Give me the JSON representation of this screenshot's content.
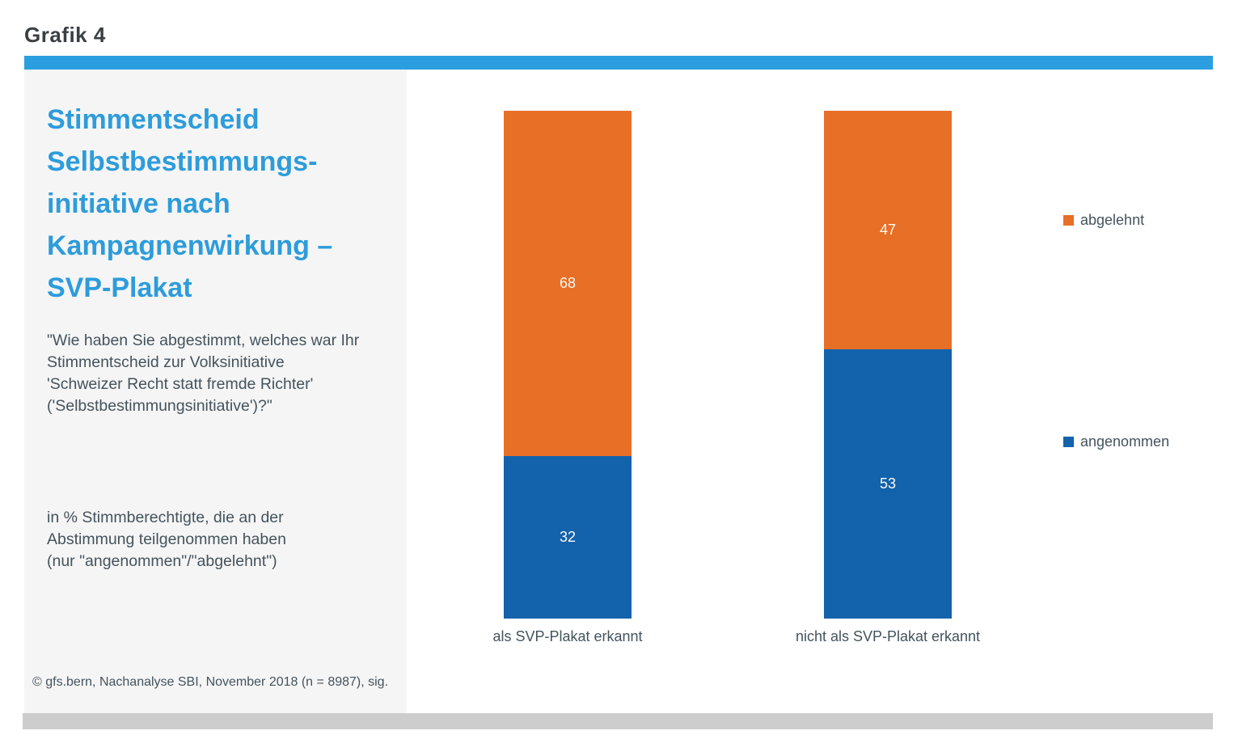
{
  "page": {
    "heading": "Grafik 4",
    "accent_color": "#2B9EDF",
    "panel_bg": "#F5F5F5",
    "bottom_bar_color": "#CDCDCD",
    "title_color": "#2D9CDB",
    "text_color": "#44535D"
  },
  "panel": {
    "title_lines": [
      "Stimmentscheid",
      "Selbstbestimmungs-",
      "initiative nach",
      "Kampagnenwirkung –",
      "SVP-Plakat"
    ],
    "question_lines": [
      "\"Wie haben Sie abgestimmt, welches war Ihr",
      "Stimmentscheid zur Volksinitiative",
      "'Schweizer Recht statt fremde Richter'",
      "('Selbstbestimmungsinitiative')?\""
    ],
    "note_lines": [
      "in % Stimmberechtigte, die an der",
      "Abstimmung teilgenommen haben",
      "(nur \"angenommen\"/\"abgelehnt\")"
    ],
    "source": "© gfs.bern, Nachanalyse SBI, November 2018 (n = 8987), sig."
  },
  "chart_data": {
    "type": "bar",
    "stacked": true,
    "orientation": "vertical",
    "title": "Stimmentscheid Selbstbestimmungsinitiative nach Kampagnenwirkung – SVP-Plakat",
    "ylabel": "in % Stimmberechtigte, die an der Abstimmung teilgenommen haben",
    "categories": [
      "als SVP-Plakat erkannt",
      "nicht als SVP-Plakat erkannt"
    ],
    "series": [
      {
        "name": "abgelehnt",
        "color": "#E86F26",
        "values": [
          68,
          47
        ]
      },
      {
        "name": "angenommen",
        "color": "#1362AC",
        "values": [
          32,
          53
        ]
      }
    ],
    "ylim": [
      0,
      100
    ],
    "grid": false,
    "legend_position": "right",
    "value_labels": "inside-center"
  }
}
